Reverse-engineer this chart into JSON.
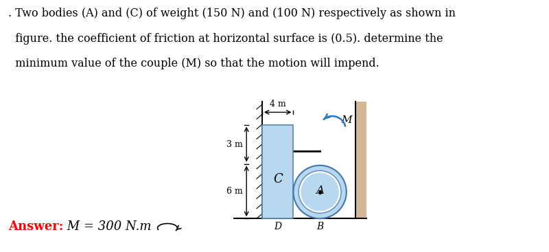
{
  "text_line1": ". Two bodies (A) and (C) of weight (150 N) and (100 N) respectively as shown in",
  "text_line2": "  figure. the coefficient of friction at horizontal surface is (0.5). determine the",
  "text_line3": "  minimum value of the couple (M) so that the motion will impend.",
  "answer_label": "Answer:",
  "answer_value": " M = 300 N.m",
  "fig_bg": "#ffffff",
  "rect_C_color": "#b8d8f0",
  "circle_A_color": "#b8d8f0",
  "wall_color": "#d4b896",
  "text_fontsize": 11.5,
  "answer_fontsize": 13,
  "dim_4m": "4 m",
  "dim_3m": "3 m",
  "dim_6m": "6 m",
  "label_C": "C",
  "label_A": "A",
  "label_D": "D",
  "label_B": "B",
  "label_M": "M"
}
